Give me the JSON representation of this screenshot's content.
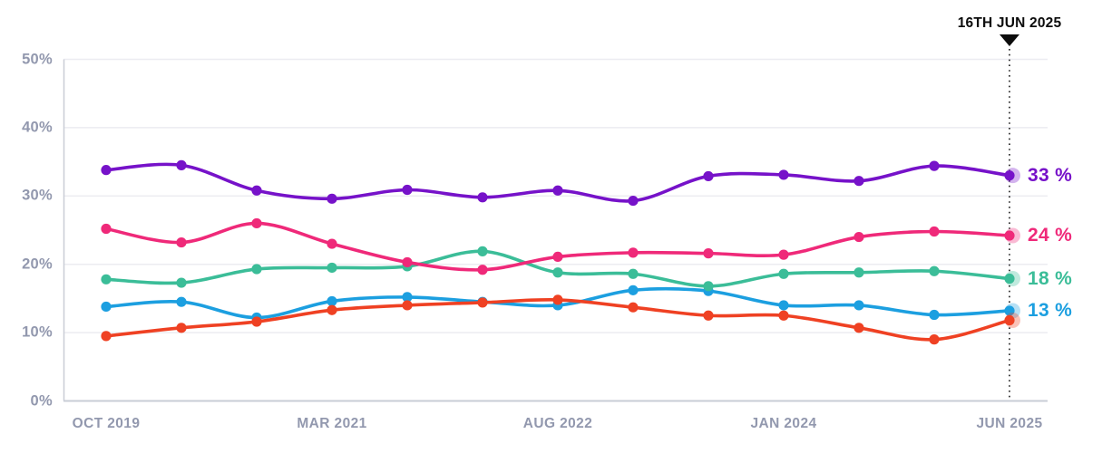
{
  "annotation": {
    "date_label": "16TH JUN 2025",
    "marker": "triangle-down-icon",
    "at_point_index": 12
  },
  "y_axis": {
    "ticks": [
      {
        "label": "50%",
        "value": 50
      },
      {
        "label": "40%",
        "value": 40
      },
      {
        "label": "30%",
        "value": 30
      },
      {
        "label": "20%",
        "value": 20
      },
      {
        "label": "10%",
        "value": 10
      },
      {
        "label": "0%",
        "value": 0
      }
    ]
  },
  "x_axis": {
    "ticks": [
      {
        "label": "OCT 2019",
        "point_index": 0
      },
      {
        "label": "MAR 2021",
        "point_index": 3
      },
      {
        "label": "AUG 2022",
        "point_index": 6
      },
      {
        "label": "JAN 2024",
        "point_index": 9
      },
      {
        "label": "JUN 2025",
        "point_index": 12
      }
    ]
  },
  "chart_data": {
    "type": "line",
    "title": "",
    "xlabel": "",
    "ylabel": "",
    "ylim": [
      0,
      50
    ],
    "grid": "horizontal",
    "legend_position": "end-of-line-labels",
    "n_points": 13,
    "x_tick_labels": [
      "OCT 2019",
      "MAR 2021",
      "AUG 2022",
      "JAN 2024",
      "JUN 2025"
    ],
    "x_tick_point_indices": [
      0,
      3,
      6,
      9,
      12
    ],
    "annotation": {
      "label": "16TH JUN 2025",
      "at_point_index": 12
    },
    "series": [
      {
        "name": "purple",
        "color": "#7612C9",
        "end_label": "33 %",
        "values": [
          33.8,
          34.5,
          30.8,
          29.6,
          30.9,
          29.8,
          30.8,
          29.3,
          32.9,
          33.1,
          32.2,
          34.4,
          33.0
        ]
      },
      {
        "name": "pink",
        "color": "#EF2979",
        "end_label": "24 %",
        "values": [
          25.2,
          23.2,
          26.0,
          23.0,
          20.3,
          19.2,
          21.1,
          21.7,
          21.6,
          21.4,
          24.0,
          24.8,
          24.2
        ]
      },
      {
        "name": "teal",
        "color": "#3BBD98",
        "end_label": "18 %",
        "values": [
          17.8,
          17.3,
          19.3,
          19.5,
          19.7,
          21.9,
          18.8,
          18.6,
          16.8,
          18.6,
          18.8,
          19.0,
          17.9
        ]
      },
      {
        "name": "blue",
        "color": "#1C9FE0",
        "end_label": "13 %",
        "values": [
          13.8,
          14.5,
          12.2,
          14.6,
          15.2,
          14.5,
          14.0,
          16.2,
          16.1,
          14.0,
          14.0,
          12.6,
          13.2
        ]
      },
      {
        "name": "red",
        "color": "#EF4123",
        "end_label": "",
        "values": [
          9.5,
          10.7,
          11.6,
          13.3,
          14.0,
          14.4,
          14.8,
          13.7,
          12.5,
          12.5,
          10.7,
          9.0,
          11.8
        ]
      }
    ]
  },
  "colors": {
    "background": "#ffffff",
    "axis_label": "#9298AE",
    "gridline": "#ECECF1",
    "axis_line": "#C9CDD6",
    "annotation_line": "#1A1A1A",
    "annotation_text": "#0C0C0C"
  }
}
